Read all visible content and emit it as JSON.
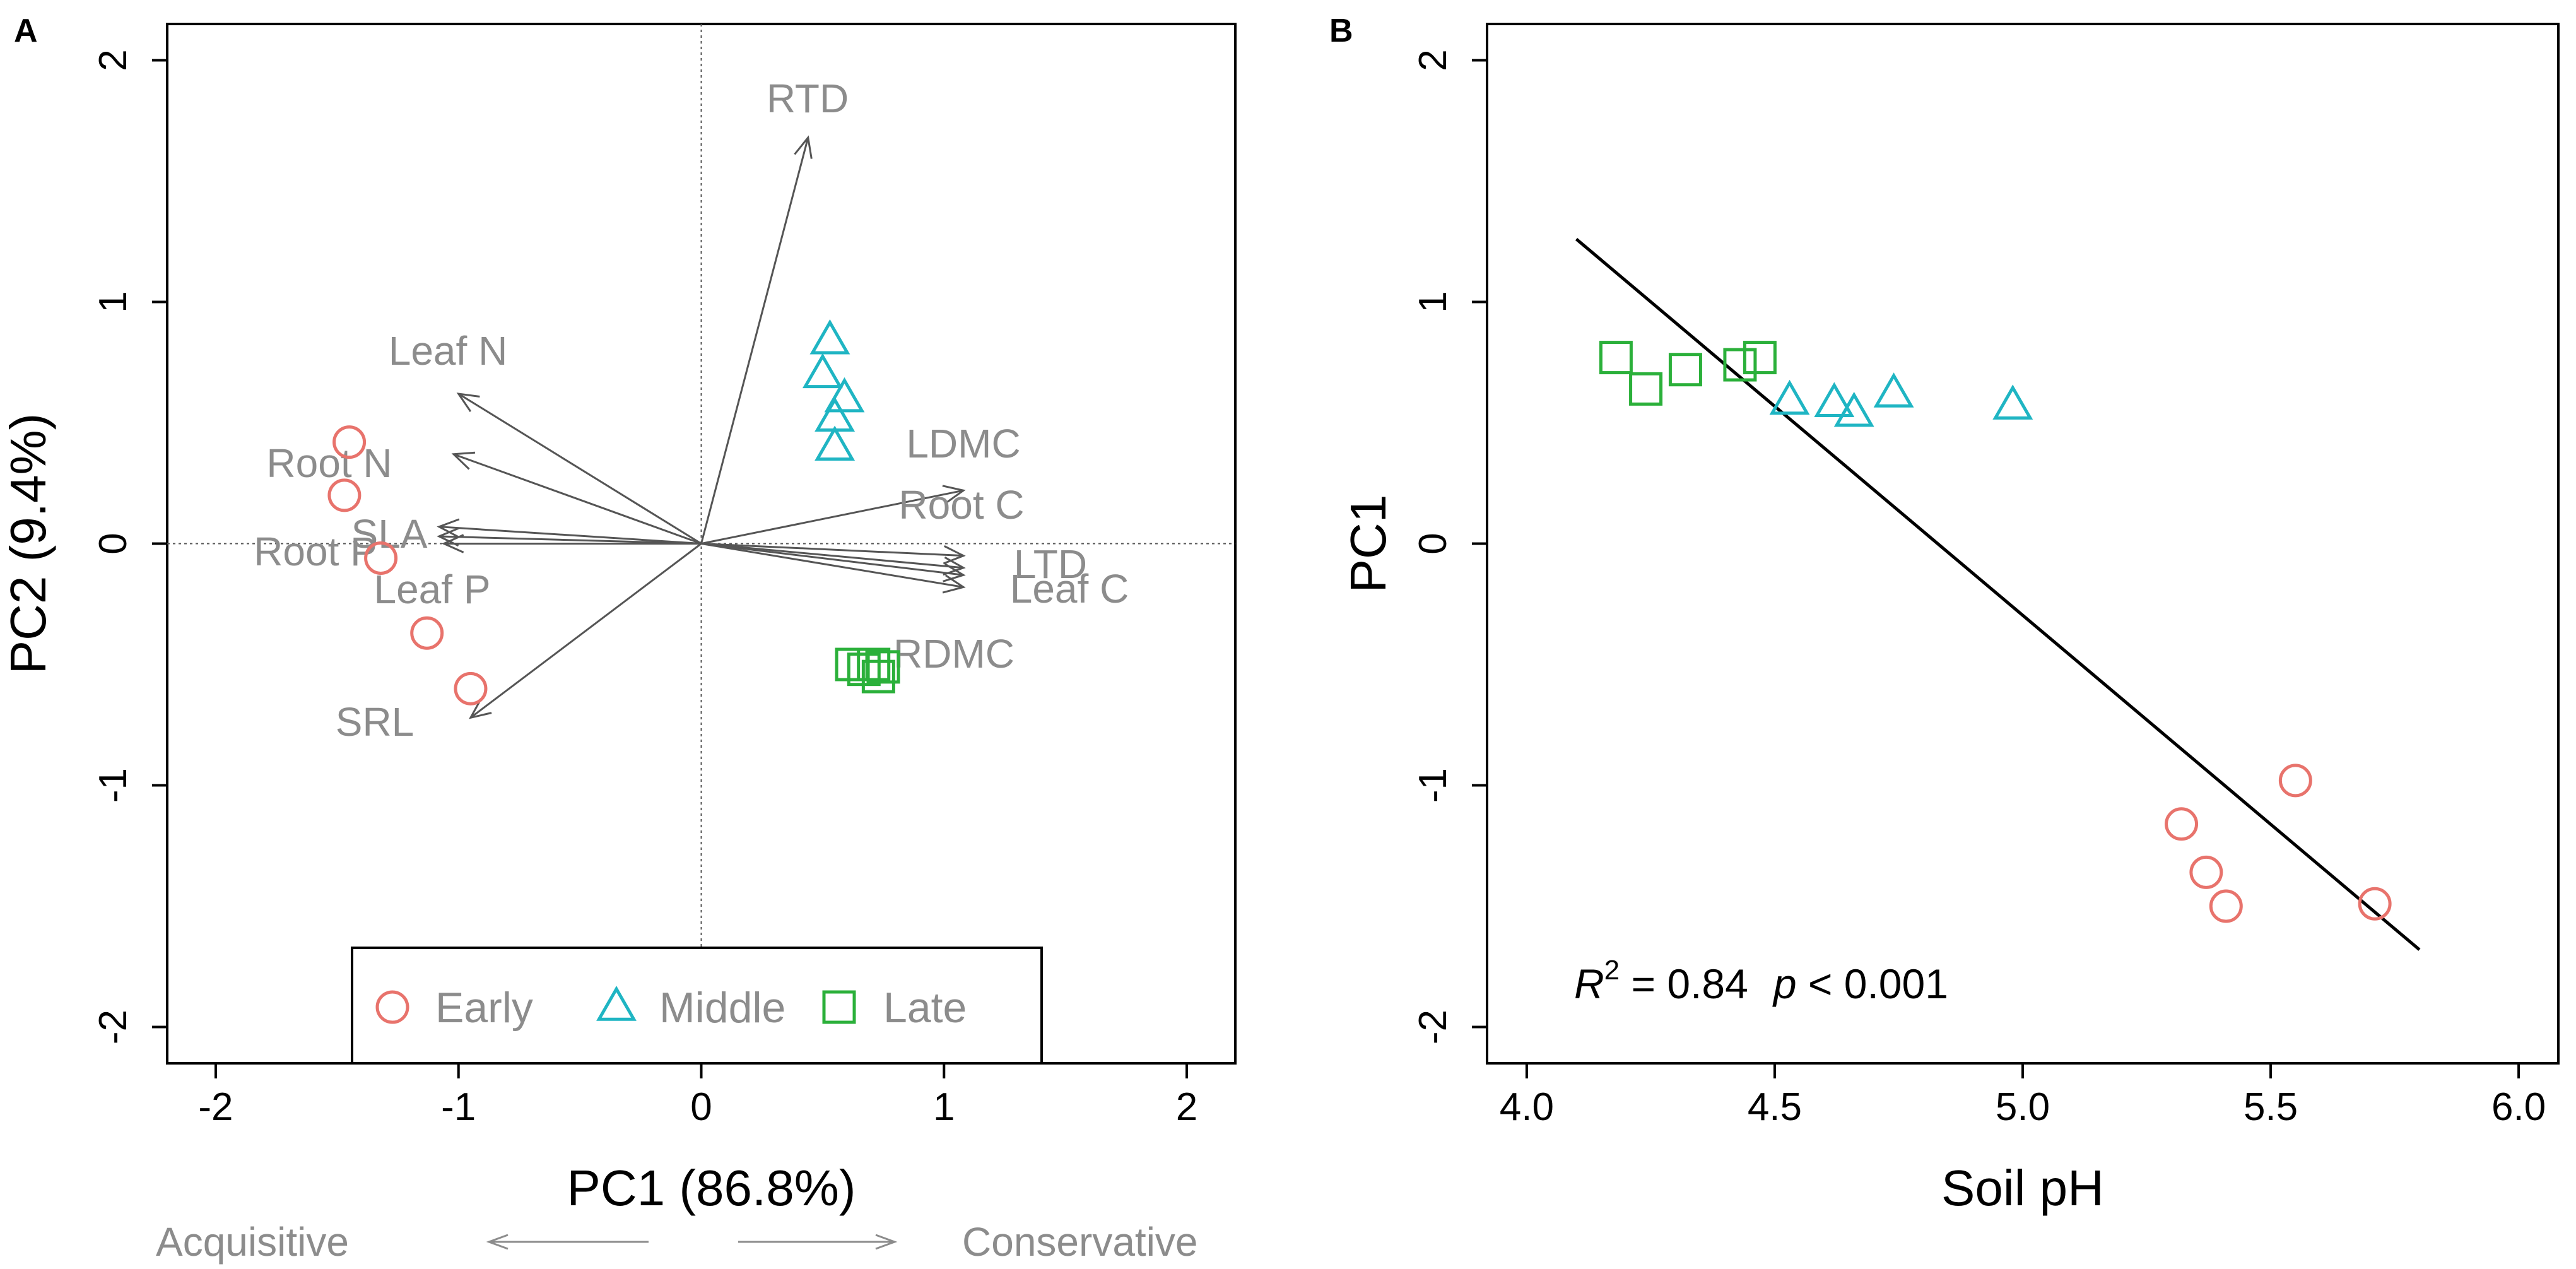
{
  "chart_data": [
    {
      "panel": "A",
      "type": "scatter",
      "subtype": "pca-biplot",
      "xlabel": "PC1 (86.8%)",
      "ylabel": "PC2 (9.4%)",
      "xlim": [
        -2.2,
        2.2
      ],
      "ylim": [
        -2.15,
        2.15
      ],
      "xticks": [
        -2,
        -1,
        0,
        1,
        2
      ],
      "yticks": [
        -2,
        -1,
        0,
        1,
        2
      ],
      "reference_lines": {
        "x0": true,
        "y0": true,
        "style": "dotted"
      },
      "loadings": [
        {
          "label": "RTD",
          "x": 0.44,
          "y": 1.68
        },
        {
          "label": "Leaf N",
          "x": -1.0,
          "y": 0.62
        },
        {
          "label": "Root N",
          "x": -1.02,
          "y": 0.37
        },
        {
          "label": "SLA",
          "x": -1.08,
          "y": 0.07
        },
        {
          "label": "Root P",
          "x": -1.08,
          "y": 0.03
        },
        {
          "label": "Leaf P",
          "x": -1.06,
          "y": 0.0
        },
        {
          "label": "SRL",
          "x": -0.95,
          "y": -0.72
        },
        {
          "label": "LDMC",
          "x": 1.08,
          "y": 0.22
        },
        {
          "label": "Root C",
          "x": 1.08,
          "y": -0.05
        },
        {
          "label": "LTD",
          "x": 1.08,
          "y": -0.1
        },
        {
          "label": "Leaf C",
          "x": 1.08,
          "y": -0.13
        },
        {
          "label": "RDMC",
          "x": 1.08,
          "y": -0.18
        }
      ],
      "series": [
        {
          "name": "Early",
          "marker": "circle",
          "color": "#e8736c",
          "points": [
            [
              -1.45,
              0.42
            ],
            [
              -1.47,
              0.2
            ],
            [
              -1.32,
              -0.06
            ],
            [
              -1.13,
              -0.37
            ],
            [
              -0.95,
              -0.6
            ]
          ]
        },
        {
          "name": "Middle",
          "marker": "triangle",
          "color": "#1fb5c3",
          "points": [
            [
              0.53,
              0.84
            ],
            [
              0.5,
              0.7
            ],
            [
              0.59,
              0.6
            ],
            [
              0.55,
              0.52
            ],
            [
              0.55,
              0.4
            ]
          ]
        },
        {
          "name": "Late",
          "marker": "square",
          "color": "#2bb03a",
          "points": [
            [
              0.62,
              -0.5
            ],
            [
              0.67,
              -0.52
            ],
            [
              0.71,
              -0.5
            ],
            [
              0.73,
              -0.55
            ],
            [
              0.75,
              -0.51
            ]
          ]
        }
      ],
      "legend_position": "bottom",
      "direction_labels": {
        "left": "Acquisitive",
        "right": "Conservative"
      }
    },
    {
      "panel": "B",
      "type": "scatter",
      "xlabel": "Soil pH",
      "ylabel": "PC1",
      "xlim": [
        3.92,
        6.08
      ],
      "ylim": [
        -2.15,
        2.15
      ],
      "xticks": [
        "4.0",
        "4.5",
        "5.0",
        "5.5",
        "6.0"
      ],
      "yticks": [
        -2,
        -1,
        0,
        1,
        2
      ],
      "series": [
        {
          "name": "Early",
          "marker": "circle",
          "color": "#e8736c",
          "points": [
            [
              5.32,
              -1.16
            ],
            [
              5.37,
              -1.36
            ],
            [
              5.41,
              -1.5
            ],
            [
              5.55,
              -0.98
            ],
            [
              5.71,
              -1.49
            ]
          ]
        },
        {
          "name": "Middle",
          "marker": "triangle",
          "color": "#1fb5c3",
          "points": [
            [
              4.53,
              0.59
            ],
            [
              4.62,
              0.58
            ],
            [
              4.66,
              0.54
            ],
            [
              4.74,
              0.62
            ],
            [
              4.98,
              0.57
            ]
          ]
        },
        {
          "name": "Late",
          "marker": "square",
          "color": "#2bb03a",
          "points": [
            [
              4.18,
              0.77
            ],
            [
              4.24,
              0.64
            ],
            [
              4.32,
              0.72
            ],
            [
              4.43,
              0.74
            ],
            [
              4.47,
              0.77
            ]
          ]
        }
      ],
      "fit_line": {
        "x": [
          4.1,
          5.8
        ],
        "y": [
          1.26,
          -1.68
        ]
      },
      "annotation": {
        "r2_label": "R",
        "r2_exp": "2",
        "r2_value": " = 0.84",
        "p_label": "p",
        "p_value": " < 0.001"
      }
    }
  ]
}
